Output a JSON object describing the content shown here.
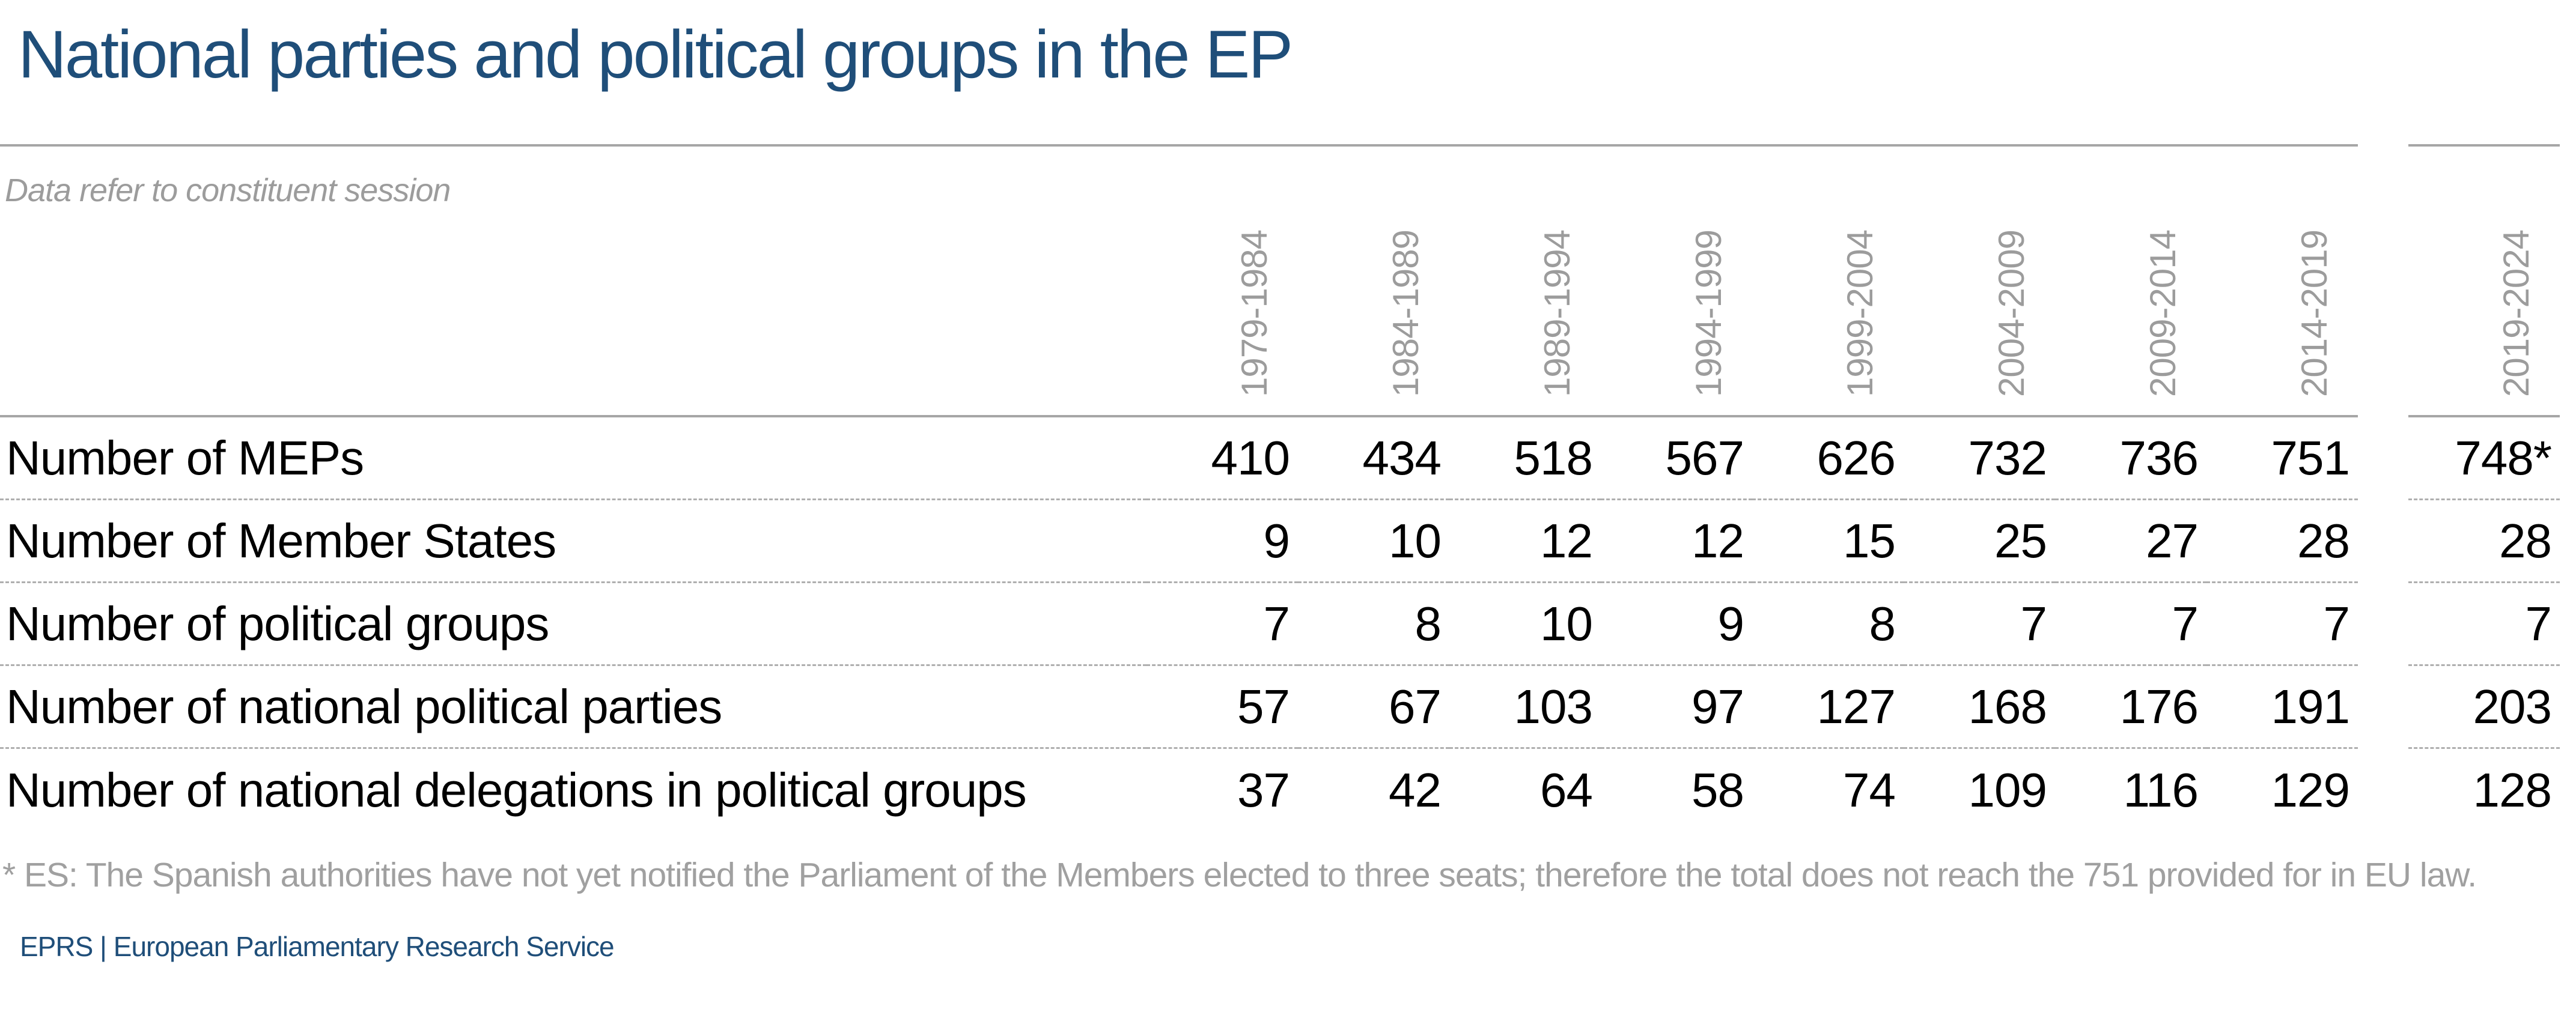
{
  "page": {
    "title": "National parties and political groups in the EP",
    "subtitle": "Data refer to constituent session",
    "footnote": "* ES: The Spanish authorities have not yet notified the Parliament of the Members elected to three seats; therefore the total does not reach the 751 provided for in EU law.",
    "source_line": "EPRS | European Parliamentary Research Service"
  },
  "colors": {
    "navy": "#1F4E79",
    "gray_text": "#9C9C9C",
    "solid_line": "#A6A6A6",
    "dashed_line": "#AFAFAF",
    "value_text": "#000000"
  },
  "chart_data": {
    "type": "table",
    "title": "National parties and political groups in the EP",
    "subtitle": "Data refer to constituent session",
    "columns": [
      "1979-1984",
      "1984-1989",
      "1989-1994",
      "1994-1999",
      "1999-2004",
      "2004-2009",
      "2009-2014",
      "2014-2019",
      "2019-2024"
    ],
    "rows": [
      {
        "label": "Number of MEPs",
        "values": [
          "410",
          "434",
          "518",
          "567",
          "626",
          "732",
          "736",
          "751",
          "748*"
        ]
      },
      {
        "label": "Number of Member States",
        "values": [
          "9",
          "10",
          "12",
          "12",
          "15",
          "25",
          "27",
          "28",
          "28"
        ]
      },
      {
        "label": "Number of political groups",
        "values": [
          "7",
          "8",
          "10",
          "9",
          "8",
          "7",
          "7",
          "7",
          "7"
        ]
      },
      {
        "label": "Number of national political parties",
        "values": [
          "57",
          "67",
          "103",
          "97",
          "127",
          "168",
          "176",
          "191",
          "203"
        ]
      },
      {
        "label": "Number of national delegations in political groups",
        "values": [
          "37",
          "42",
          "64",
          "58",
          "74",
          "109",
          "116",
          "129",
          "128"
        ]
      }
    ],
    "footnote": "* ES: The Spanish authorities have not yet notified the Parliament of the Members elected to three seats; therefore the total does not reach the 751 provided for in EU law.",
    "source": "EPRS | European Parliamentary Research Service",
    "layout": {
      "last_column_separated": true,
      "row_separator": "dashed",
      "header_separator": "solid"
    }
  }
}
